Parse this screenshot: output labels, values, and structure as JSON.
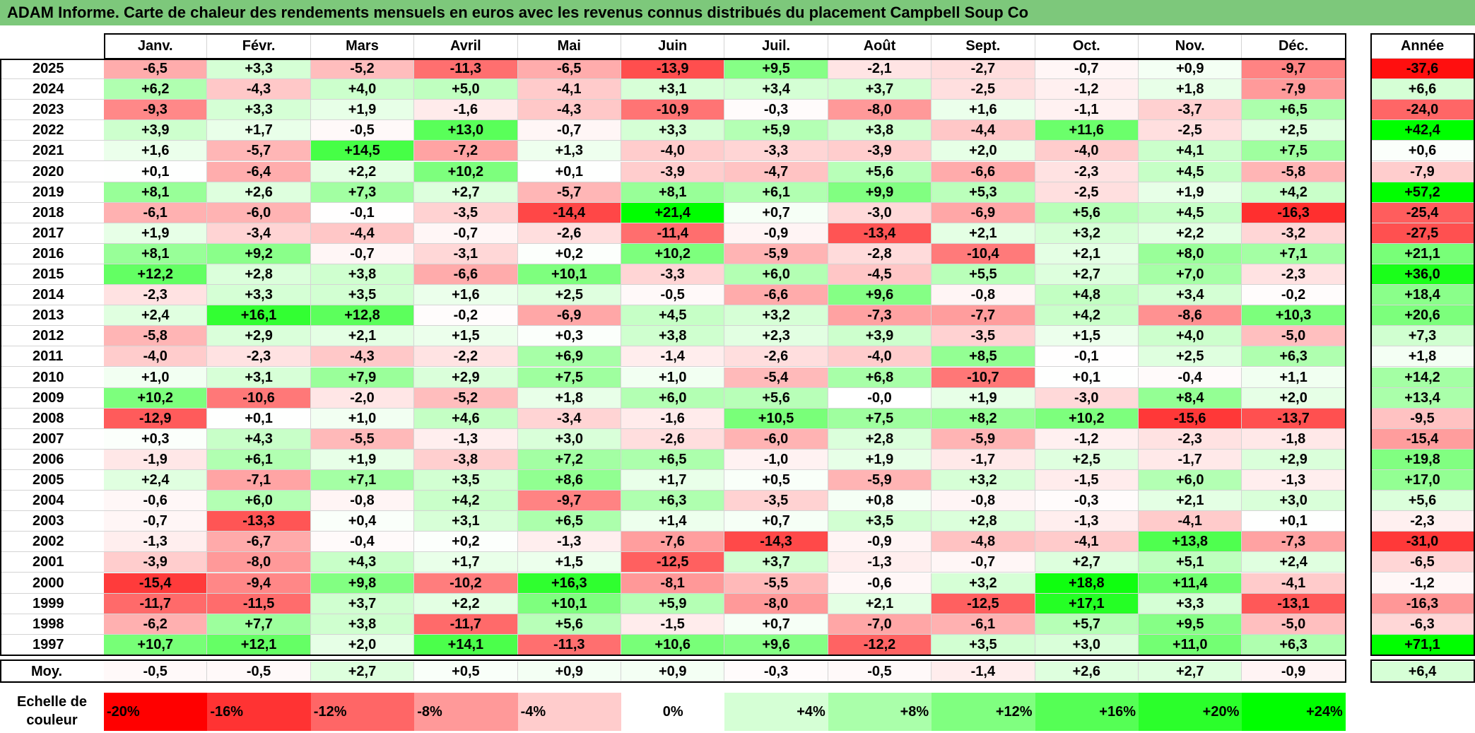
{
  "title": "ADAM Informe. Carte de chaleur des rendements mensuels en euros avec les revenus connus distribués du placement Campbell Soup Co",
  "chart_data": {
    "type": "heatmap",
    "columns": [
      "Janv.",
      "Févr.",
      "Mars",
      "Avril",
      "Mai",
      "Juin",
      "Juil.",
      "Août",
      "Sept.",
      "Oct.",
      "Nov.",
      "Déc."
    ],
    "year_column": "Année",
    "rows": [
      {
        "year": "2025",
        "values": [
          "-6,5",
          "+3,3",
          "-5,2",
          "-11,3",
          "-6,5",
          "-13,9",
          "+9,5",
          "-2,1",
          "-2,7",
          "-0,7",
          "+0,9",
          "-9,7"
        ],
        "annual": "-37,6"
      },
      {
        "year": "2024",
        "values": [
          "+6,2",
          "-4,3",
          "+4,0",
          "+5,0",
          "-4,1",
          "+3,1",
          "+3,4",
          "+3,7",
          "-2,5",
          "-1,2",
          "+1,8",
          "-7,9"
        ],
        "annual": "+6,6"
      },
      {
        "year": "2023",
        "values": [
          "-9,3",
          "+3,3",
          "+1,9",
          "-1,6",
          "-4,3",
          "-10,9",
          "-0,3",
          "-8,0",
          "+1,6",
          "-1,1",
          "-3,7",
          "+6,5"
        ],
        "annual": "-24,0"
      },
      {
        "year": "2022",
        "values": [
          "+3,9",
          "+1,7",
          "-0,5",
          "+13,0",
          "-0,7",
          "+3,3",
          "+5,9",
          "+3,8",
          "-4,4",
          "+11,6",
          "-2,5",
          "+2,5"
        ],
        "annual": "+42,4"
      },
      {
        "year": "2021",
        "values": [
          "+1,6",
          "-5,7",
          "+14,5",
          "-7,2",
          "+1,3",
          "-4,0",
          "-3,3",
          "-3,9",
          "+2,0",
          "-4,0",
          "+4,1",
          "+7,5"
        ],
        "annual": "+0,6"
      },
      {
        "year": "2020",
        "values": [
          "+0,1",
          "-6,4",
          "+2,2",
          "+10,2",
          "+0,1",
          "-3,9",
          "-4,7",
          "+5,6",
          "-6,6",
          "-2,3",
          "+4,5",
          "-5,8"
        ],
        "annual": "-7,9"
      },
      {
        "year": "2019",
        "values": [
          "+8,1",
          "+2,6",
          "+7,3",
          "+2,7",
          "-5,7",
          "+8,1",
          "+6,1",
          "+9,9",
          "+5,3",
          "-2,5",
          "+1,9",
          "+4,2"
        ],
        "annual": "+57,2"
      },
      {
        "year": "2018",
        "values": [
          "-6,1",
          "-6,0",
          "-0,1",
          "-3,5",
          "-14,4",
          "+21,4",
          "+0,7",
          "-3,0",
          "-6,9",
          "+5,6",
          "+4,5",
          "-16,3"
        ],
        "annual": "-25,4"
      },
      {
        "year": "2017",
        "values": [
          "+1,9",
          "-3,4",
          "-4,4",
          "-0,7",
          "-2,6",
          "-11,4",
          "-0,9",
          "-13,4",
          "+2,1",
          "+3,2",
          "+2,2",
          "-3,2"
        ],
        "annual": "-27,5"
      },
      {
        "year": "2016",
        "values": [
          "+8,1",
          "+9,2",
          "-0,7",
          "-3,1",
          "+0,2",
          "+10,2",
          "-5,9",
          "-2,8",
          "-10,4",
          "+2,1",
          "+8,0",
          "+7,1"
        ],
        "annual": "+21,1"
      },
      {
        "year": "2015",
        "values": [
          "+12,2",
          "+2,8",
          "+3,8",
          "-6,6",
          "+10,1",
          "-3,3",
          "+6,0",
          "-4,5",
          "+5,5",
          "+2,7",
          "+7,0",
          "-2,3"
        ],
        "annual": "+36,0"
      },
      {
        "year": "2014",
        "values": [
          "-2,3",
          "+3,3",
          "+3,5",
          "+1,6",
          "+2,5",
          "-0,5",
          "-6,6",
          "+9,6",
          "-0,8",
          "+4,8",
          "+3,4",
          "-0,2"
        ],
        "annual": "+18,4"
      },
      {
        "year": "2013",
        "values": [
          "+2,4",
          "+16,1",
          "+12,8",
          "-0,2",
          "-6,9",
          "+4,5",
          "+3,2",
          "-7,3",
          "-7,7",
          "+4,2",
          "-8,6",
          "+10,3"
        ],
        "annual": "+20,6"
      },
      {
        "year": "2012",
        "values": [
          "-5,8",
          "+2,9",
          "+2,1",
          "+1,5",
          "+0,3",
          "+3,8",
          "+2,3",
          "+3,9",
          "-3,5",
          "+1,5",
          "+4,0",
          "-5,0"
        ],
        "annual": "+7,3"
      },
      {
        "year": "2011",
        "values": [
          "-4,0",
          "-2,3",
          "-4,3",
          "-2,2",
          "+6,9",
          "-1,4",
          "-2,6",
          "-4,0",
          "+8,5",
          "-0,1",
          "+2,5",
          "+6,3"
        ],
        "annual": "+1,8"
      },
      {
        "year": "2010",
        "values": [
          "+1,0",
          "+3,1",
          "+7,9",
          "+2,9",
          "+7,5",
          "+1,0",
          "-5,4",
          "+6,8",
          "-10,7",
          "+0,1",
          "-0,4",
          "+1,1"
        ],
        "annual": "+14,2"
      },
      {
        "year": "2009",
        "values": [
          "+10,2",
          "-10,6",
          "-2,0",
          "-5,2",
          "+1,8",
          "+6,0",
          "+5,6",
          "-0,0",
          "+1,9",
          "-3,0",
          "+8,4",
          "+2,0"
        ],
        "annual": "+13,4"
      },
      {
        "year": "2008",
        "values": [
          "-12,9",
          "+0,1",
          "+1,0",
          "+4,6",
          "-3,4",
          "-1,6",
          "+10,5",
          "+7,5",
          "+8,2",
          "+10,2",
          "-15,6",
          "-13,7"
        ],
        "annual": "-9,5"
      },
      {
        "year": "2007",
        "values": [
          "+0,3",
          "+4,3",
          "-5,5",
          "-1,3",
          "+3,0",
          "-2,6",
          "-6,0",
          "+2,8",
          "-5,9",
          "-1,2",
          "-2,3",
          "-1,8"
        ],
        "annual": "-15,4"
      },
      {
        "year": "2006",
        "values": [
          "-1,9",
          "+6,1",
          "+1,9",
          "-3,8",
          "+7,2",
          "+6,5",
          "-1,0",
          "+1,9",
          "-1,7",
          "+2,5",
          "-1,7",
          "+2,9"
        ],
        "annual": "+19,8"
      },
      {
        "year": "2005",
        "values": [
          "+2,4",
          "-7,1",
          "+7,1",
          "+3,5",
          "+8,6",
          "+1,7",
          "+0,5",
          "-5,9",
          "+3,2",
          "-1,5",
          "+6,0",
          "-1,3"
        ],
        "annual": "+17,0"
      },
      {
        "year": "2004",
        "values": [
          "-0,6",
          "+6,0",
          "-0,8",
          "+4,2",
          "-9,7",
          "+6,3",
          "-3,5",
          "+0,8",
          "-0,8",
          "-0,3",
          "+2,1",
          "+3,0"
        ],
        "annual": "+5,6"
      },
      {
        "year": "2003",
        "values": [
          "-0,7",
          "-13,3",
          "+0,4",
          "+3,1",
          "+6,5",
          "+1,4",
          "+0,7",
          "+3,5",
          "+2,8",
          "-1,3",
          "-4,1",
          "+0,1"
        ],
        "annual": "-2,3"
      },
      {
        "year": "2002",
        "values": [
          "-1,3",
          "-6,7",
          "-0,4",
          "+0,2",
          "-1,3",
          "-7,6",
          "-14,3",
          "-0,9",
          "-4,8",
          "-4,1",
          "+13,8",
          "-7,3"
        ],
        "annual": "-31,0"
      },
      {
        "year": "2001",
        "values": [
          "-3,9",
          "-8,0",
          "+4,3",
          "+1,7",
          "+1,5",
          "-12,5",
          "+3,7",
          "-1,3",
          "-0,7",
          "+2,7",
          "+5,1",
          "+2,4"
        ],
        "annual": "-6,5"
      },
      {
        "year": "2000",
        "values": [
          "-15,4",
          "-9,4",
          "+9,8",
          "-10,2",
          "+16,3",
          "-8,1",
          "-5,5",
          "-0,6",
          "+3,2",
          "+18,8",
          "+11,4",
          "-4,1"
        ],
        "annual": "-1,2"
      },
      {
        "year": "1999",
        "values": [
          "-11,7",
          "-11,5",
          "+3,7",
          "+2,2",
          "+10,1",
          "+5,9",
          "-8,0",
          "+2,1",
          "-12,5",
          "+17,1",
          "+3,3",
          "-13,1"
        ],
        "annual": "-16,3"
      },
      {
        "year": "1998",
        "values": [
          "-6,2",
          "+7,7",
          "+3,8",
          "-11,7",
          "+5,6",
          "-1,5",
          "+0,7",
          "-7,0",
          "-6,1",
          "+5,7",
          "+9,5",
          "-5,0"
        ],
        "annual": "-6,3"
      },
      {
        "year": "1997",
        "values": [
          "+10,7",
          "+12,1",
          "+2,0",
          "+14,1",
          "-11,3",
          "+10,6",
          "+9,6",
          "-12,2",
          "+3,5",
          "+3,0",
          "+11,0",
          "+6,3"
        ],
        "annual": "+71,1"
      }
    ],
    "average": {
      "label": "Moy.",
      "values": [
        "-0,5",
        "-0,5",
        "+2,7",
        "+0,5",
        "+0,9",
        "+0,9",
        "-0,3",
        "-0,5",
        "-1,4",
        "+2,6",
        "+2,7",
        "-0,9"
      ],
      "annual": "+6,4"
    },
    "color_scale": {
      "label_line1": "Echelle de",
      "label_line2": "couleur",
      "stops": [
        {
          "label": "-20%",
          "value": -20,
          "color": "#ff0000"
        },
        {
          "label": "-16%",
          "value": -16,
          "color": "#ff3333"
        },
        {
          "label": "-12%",
          "value": -12,
          "color": "#ff6666"
        },
        {
          "label": "-8%",
          "value": -8,
          "color": "#ff9999"
        },
        {
          "label": "-4%",
          "value": -4,
          "color": "#ffcccc"
        },
        {
          "label": "0%",
          "value": 0,
          "color": "#ffffff"
        },
        {
          "label": "+4%",
          "value": 4,
          "color": "#d5ffd5"
        },
        {
          "label": "+8%",
          "value": 8,
          "color": "#aaffaa"
        },
        {
          "label": "+12%",
          "value": 12,
          "color": "#80ff80"
        },
        {
          "label": "+16%",
          "value": 16,
          "color": "#55ff55"
        },
        {
          "label": "+20%",
          "value": 20,
          "color": "#2bff2b"
        },
        {
          "label": "+24%",
          "value": 24,
          "color": "#00ff00"
        }
      ]
    }
  }
}
